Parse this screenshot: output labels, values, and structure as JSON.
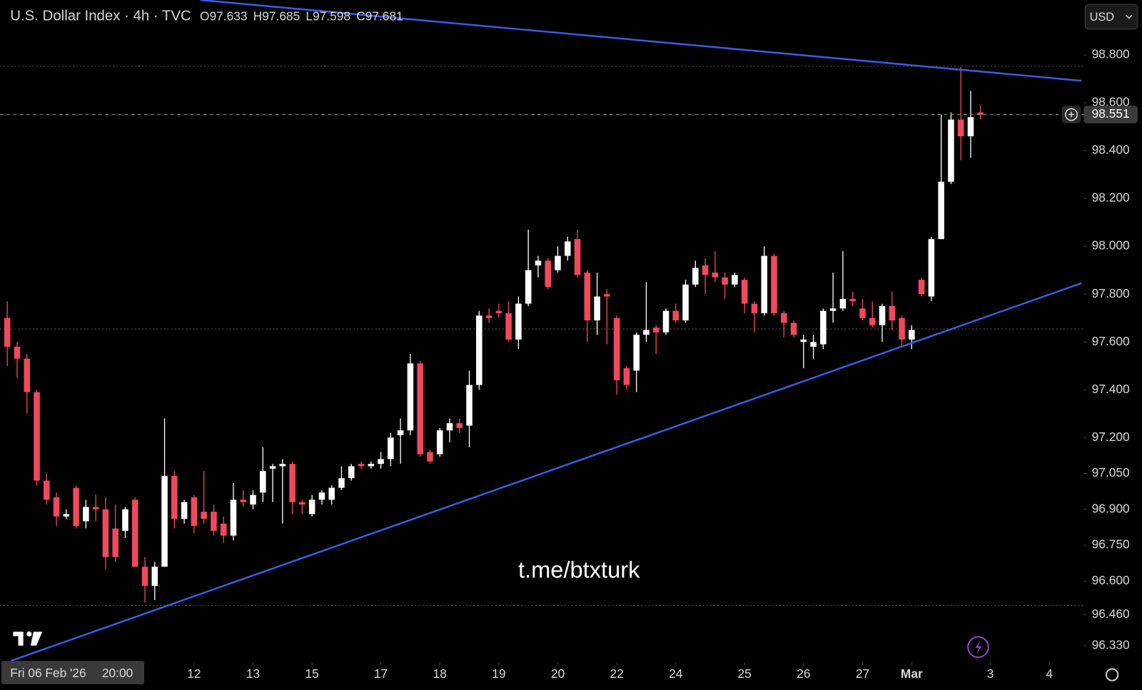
{
  "chart_data": {
    "type": "candlestick",
    "title": "U.S. Dollar Index · 4h · TVC",
    "ohlc": [
      {
        "label": "O",
        "value": 97.633
      },
      {
        "label": "H",
        "value": 97.685
      },
      {
        "label": "L",
        "value": 97.598
      },
      {
        "label": "C",
        "value": 97.681
      }
    ],
    "currency": "USD",
    "watermark": "t.me/btxturk",
    "crosshair_date": "Fri 06 Feb '26",
    "crosshair_time": "20:00",
    "last_price": {
      "value": 98.551,
      "label": "98.551"
    },
    "up_color": "#ffffff",
    "down_color": "#f0495d",
    "open": [
      97.7,
      97.58,
      97.53,
      97.39,
      97.02,
      96.95,
      96.87,
      96.99,
      96.85,
      96.91,
      96.9,
      96.82,
      96.81,
      96.94,
      96.66,
      96.58,
      96.66,
      97.04,
      96.86,
      96.95,
      96.89,
      96.89,
      96.84,
      96.79,
      96.94,
      96.92,
      96.97,
      97.07,
      97.08,
      97.09,
      96.93,
      96.88,
      96.94,
      96.94,
      96.99,
      97.03,
      97.09,
      97.08,
      97.09,
      97.11,
      97.21,
      97.23,
      97.51,
      97.14,
      97.13,
      97.23,
      97.26,
      97.25,
      97.42,
      97.71,
      97.73,
      97.72,
      97.61,
      97.76,
      97.92,
      97.94,
      97.9,
      97.96,
      98.03,
      97.89,
      97.69,
      97.8,
      97.7,
      97.49,
      97.48,
      97.63,
      97.66,
      97.64,
      97.73,
      97.69,
      97.84,
      97.92,
      97.89,
      97.87,
      97.84,
      97.86,
      97.76,
      97.72,
      97.96,
      97.72,
      97.68,
      97.6,
      97.58,
      97.59,
      97.73,
      97.74,
      97.78,
      97.74,
      97.7,
      97.67,
      97.75,
      97.7,
      97.61,
      97.86,
      97.79,
      98.03,
      98.27,
      98.53,
      98.46,
      98.56
    ],
    "high": [
      97.77,
      97.6,
      97.55,
      97.4,
      97.05,
      96.97,
      96.9,
      97.0,
      96.94,
      96.96,
      96.95,
      96.92,
      96.91,
      96.95,
      96.7,
      96.68,
      97.28,
      97.06,
      96.94,
      96.96,
      97.06,
      96.92,
      96.87,
      97.01,
      96.98,
      96.98,
      97.16,
      97.09,
      97.11,
      97.1,
      96.94,
      96.96,
      96.98,
      97.0,
      97.08,
      97.09,
      97.1,
      97.1,
      97.14,
      97.22,
      97.28,
      97.55,
      97.52,
      97.15,
      97.24,
      97.28,
      97.28,
      97.48,
      97.73,
      97.74,
      97.76,
      97.77,
      97.79,
      98.07,
      97.96,
      97.95,
      98.0,
      98.04,
      98.07,
      97.9,
      97.89,
      97.82,
      97.71,
      97.5,
      97.64,
      97.85,
      97.67,
      97.74,
      97.76,
      97.86,
      97.94,
      97.95,
      97.98,
      97.89,
      97.89,
      97.87,
      97.77,
      98.0,
      97.97,
      97.73,
      97.69,
      97.63,
      97.63,
      97.74,
      97.89,
      97.98,
      97.81,
      97.78,
      97.77,
      97.76,
      97.81,
      97.71,
      97.67,
      97.87,
      98.04,
      98.55,
      98.56,
      98.75,
      98.65,
      98.59
    ],
    "low": [
      97.5,
      97.45,
      97.3,
      97.0,
      96.92,
      96.83,
      96.86,
      96.82,
      96.82,
      96.85,
      96.65,
      96.68,
      96.78,
      96.66,
      96.51,
      96.52,
      96.66,
      96.82,
      96.84,
      96.8,
      96.84,
      96.79,
      96.76,
      96.77,
      96.91,
      96.9,
      96.93,
      96.93,
      96.84,
      96.88,
      96.88,
      96.87,
      96.92,
      96.92,
      96.98,
      97.02,
      97.07,
      97.07,
      97.07,
      97.08,
      97.09,
      97.21,
      97.12,
      97.09,
      97.12,
      97.18,
      97.22,
      97.16,
      97.4,
      97.68,
      97.7,
      97.6,
      97.57,
      97.75,
      97.87,
      97.82,
      97.89,
      97.94,
      97.87,
      97.6,
      97.63,
      97.59,
      97.38,
      97.4,
      97.39,
      97.6,
      97.55,
      97.63,
      97.68,
      97.68,
      97.83,
      97.8,
      97.85,
      97.78,
      97.83,
      97.72,
      97.64,
      97.71,
      97.71,
      97.62,
      97.62,
      97.49,
      97.53,
      97.57,
      97.68,
      97.73,
      97.75,
      97.69,
      97.66,
      97.6,
      97.65,
      97.58,
      97.57,
      97.79,
      97.77,
      98.03,
      98.26,
      98.36,
      98.37,
      98.53
    ],
    "close": [
      97.58,
      97.53,
      97.39,
      97.02,
      96.94,
      96.87,
      96.88,
      96.83,
      96.91,
      96.9,
      96.7,
      96.7,
      96.9,
      96.66,
      96.58,
      96.66,
      97.04,
      96.86,
      96.93,
      96.83,
      96.86,
      96.81,
      96.79,
      96.94,
      96.93,
      96.96,
      97.06,
      97.08,
      97.09,
      96.93,
      96.92,
      96.94,
      96.97,
      96.99,
      97.03,
      97.08,
      97.08,
      97.09,
      97.11,
      97.2,
      97.23,
      97.51,
      97.13,
      97.1,
      97.23,
      97.26,
      97.24,
      97.42,
      97.71,
      97.7,
      97.72,
      97.61,
      97.76,
      97.9,
      97.94,
      97.83,
      97.96,
      98.02,
      97.88,
      97.69,
      97.79,
      97.79,
      97.44,
      97.42,
      97.63,
      97.65,
      97.64,
      97.73,
      97.69,
      97.84,
      97.91,
      97.88,
      97.87,
      97.84,
      97.88,
      97.76,
      97.72,
      97.96,
      97.72,
      97.68,
      97.63,
      97.61,
      97.6,
      97.73,
      97.74,
      97.78,
      97.77,
      97.7,
      97.67,
      97.75,
      97.69,
      97.61,
      97.65,
      97.8,
      98.03,
      98.27,
      98.53,
      98.46,
      98.54,
      98.55
    ],
    "xlim": [
      -0.74,
      109.5
    ],
    "ylim": [
      96.26,
      99.03
    ],
    "xticks": [
      {
        "value": 19,
        "label": "12"
      },
      {
        "value": 25,
        "label": "13"
      },
      {
        "value": 31,
        "label": "15"
      },
      {
        "value": 38,
        "label": "17"
      },
      {
        "value": 44,
        "label": "18"
      },
      {
        "value": 50,
        "label": "19"
      },
      {
        "value": 56,
        "label": "20"
      },
      {
        "value": 62,
        "label": "22"
      },
      {
        "value": 68,
        "label": "24"
      },
      {
        "value": 75,
        "label": "25"
      },
      {
        "value": 81,
        "label": "26"
      },
      {
        "value": 87,
        "label": "27"
      },
      {
        "value": 92,
        "label": "Mar"
      },
      {
        "value": 100,
        "label": "3"
      },
      {
        "value": 106,
        "label": "4"
      }
    ],
    "yticks": [
      {
        "value": 98.8,
        "label": "98.800"
      },
      {
        "value": 98.6,
        "label": "98.600"
      },
      {
        "value": 98.4,
        "label": "98.400"
      },
      {
        "value": 98.2,
        "label": "98.200"
      },
      {
        "value": 98.0,
        "label": "98.000"
      },
      {
        "value": 97.8,
        "label": "97.800"
      },
      {
        "value": 97.6,
        "label": "97.600"
      },
      {
        "value": 97.4,
        "label": "97.400"
      },
      {
        "value": 97.2,
        "label": "97.200"
      },
      {
        "value": 97.05,
        "label": "97.050"
      },
      {
        "value": 96.9,
        "label": "96.900"
      },
      {
        "value": 96.75,
        "label": "96.750"
      },
      {
        "value": 96.6,
        "label": "96.600"
      },
      {
        "value": 96.46,
        "label": "96.460"
      },
      {
        "value": 96.33,
        "label": "96.330"
      }
    ]
  }
}
